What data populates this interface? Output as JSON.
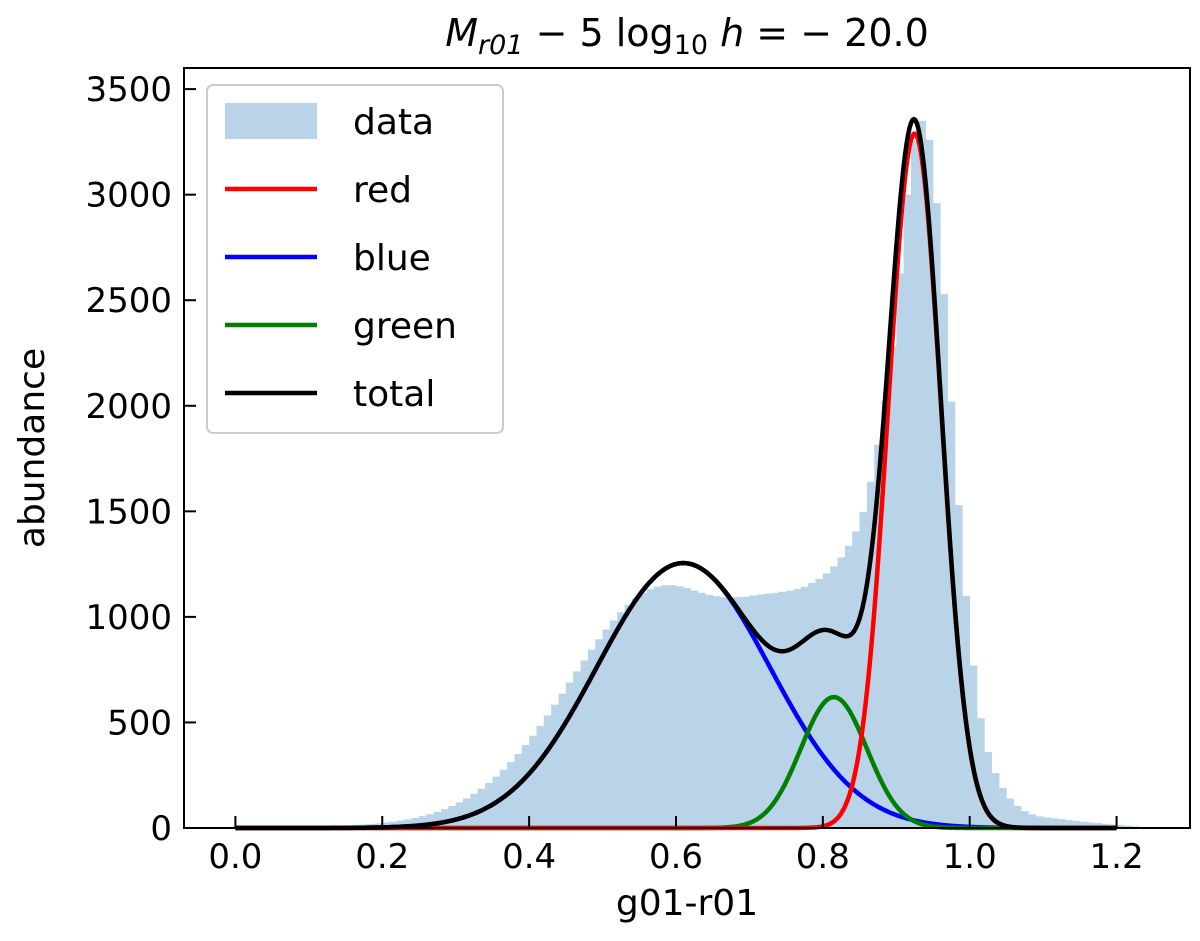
{
  "chart_data": {
    "type": "bar",
    "title": {
      "parts": [
        {
          "text": "M",
          "style": "italic",
          "sub": false
        },
        {
          "text": "r01",
          "style": "italic",
          "sub": true
        },
        {
          "text": " − 5 log",
          "style": "normal",
          "sub": false
        },
        {
          "text": "10",
          "style": "normal",
          "sub": true
        },
        {
          "text": " h",
          "style": "italic",
          "sub": false
        },
        {
          "text": " = − 20.0",
          "style": "normal",
          "sub": false
        }
      ]
    },
    "xlabel": "g01-r01",
    "ylabel": "abundance",
    "xlim": [
      -0.07,
      1.3
    ],
    "ylim": [
      0,
      3600
    ],
    "xticks": [
      0.0,
      0.2,
      0.4,
      0.6,
      0.8,
      1.0,
      1.2
    ],
    "xtick_labels": [
      "0.0",
      "0.2",
      "0.4",
      "0.6",
      "0.8",
      "1.0",
      "1.2"
    ],
    "yticks": [
      0,
      500,
      1000,
      1500,
      2000,
      2500,
      3000,
      3500
    ],
    "ytick_labels": [
      "0",
      "500",
      "1000",
      "1500",
      "2000",
      "2500",
      "3000",
      "3500"
    ],
    "histogram": {
      "name": "data",
      "color": "#b9d4e8",
      "bin_start": 0.0,
      "bin_width": 0.01,
      "values": [
        2,
        2,
        3,
        3,
        4,
        4,
        5,
        5,
        6,
        7,
        8,
        9,
        10,
        11,
        12,
        13,
        15,
        17,
        19,
        22,
        26,
        30,
        35,
        41,
        48,
        56,
        65,
        76,
        89,
        104,
        121,
        140,
        162,
        186,
        213,
        243,
        276,
        312,
        351,
        393,
        437,
        484,
        533,
        584,
        636,
        689,
        742,
        794,
        845,
        894,
        940,
        983,
        1022,
        1057,
        1087,
        1112,
        1131,
        1143,
        1150,
        1150,
        1145,
        1136,
        1125,
        1114,
        1105,
        1098,
        1094,
        1093,
        1094,
        1096,
        1101,
        1106,
        1110,
        1114,
        1119,
        1124,
        1132,
        1143,
        1160,
        1180,
        1206,
        1239,
        1282,
        1336,
        1405,
        1496,
        1640,
        1815,
        2023,
        2281,
        2627,
        3000,
        3255,
        3350,
        3260,
        2960,
        2530,
        2020,
        1530,
        1100,
        770,
        520,
        360,
        260,
        190,
        140,
        105,
        80,
        65,
        55,
        50,
        46,
        42,
        38,
        34,
        30,
        26,
        23,
        20,
        17,
        14,
        11,
        8,
        5
      ]
    },
    "series": [
      {
        "name": "red",
        "label": "red",
        "color": "#ff0000",
        "type": "gaussian",
        "amplitude": 3290,
        "mean": 0.925,
        "sigma": 0.036
      },
      {
        "name": "blue",
        "label": "blue",
        "color": "#0000ff",
        "type": "gaussian",
        "amplitude": 1255,
        "mean": 0.61,
        "sigma": 0.118
      },
      {
        "name": "green",
        "label": "green",
        "color": "#008000",
        "type": "gaussian",
        "amplitude": 620,
        "mean": 0.815,
        "sigma": 0.045
      },
      {
        "name": "total",
        "label": "total",
        "color": "#000000",
        "type": "sum",
        "components": [
          "red",
          "blue",
          "green"
        ]
      }
    ],
    "legend": {
      "position": "top-left",
      "entries": [
        {
          "label": "data",
          "kind": "patch",
          "color": "#b9d4e8"
        },
        {
          "label": "red",
          "kind": "line",
          "color": "#ff0000"
        },
        {
          "label": "blue",
          "kind": "line",
          "color": "#0000ff"
        },
        {
          "label": "green",
          "kind": "line",
          "color": "#008000"
        },
        {
          "label": "total",
          "kind": "line",
          "color": "#000000"
        }
      ]
    },
    "grid": false
  }
}
